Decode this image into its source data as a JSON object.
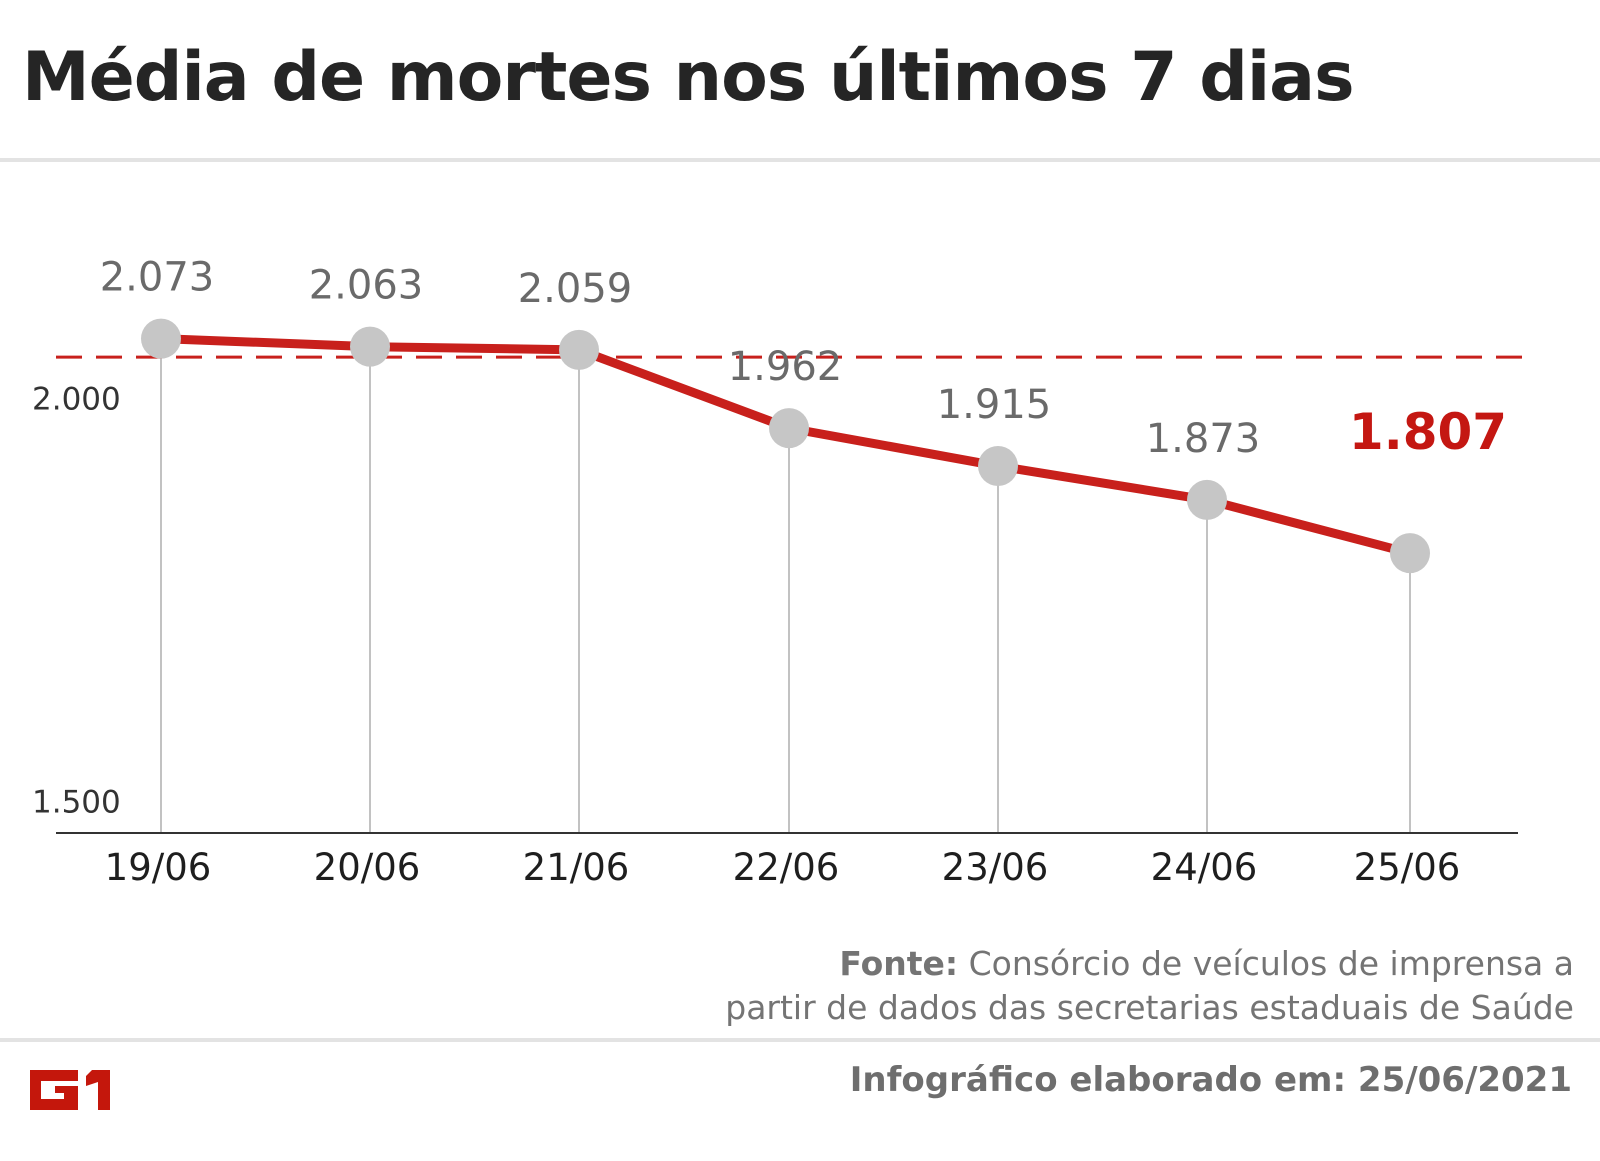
{
  "title": "Média de mortes nos últimos 7 dias",
  "chart_data": {
    "type": "line",
    "title": "Média de mortes nos últimos 7 dias",
    "xlabel": "",
    "ylabel": "",
    "categories": [
      "19/06",
      "20/06",
      "21/06",
      "22/06",
      "23/06",
      "24/06",
      "25/06"
    ],
    "series": [
      {
        "values": [
          2073,
          2063,
          2059,
          1962,
          1915,
          1873,
          1807
        ]
      }
    ],
    "data_labels": [
      "2.073",
      "2.063",
      "2.059",
      "1.962",
      "1.915",
      "1.873",
      "1.807"
    ],
    "highlight_index": 6,
    "y_ticks": [
      {
        "value": 1500,
        "label": "1.500"
      },
      {
        "value": 2000,
        "label": "2.000"
      }
    ],
    "reference_line": {
      "value": 2050,
      "style": "dashed"
    },
    "ylim": [
      1460,
      2225
    ],
    "grid": false,
    "colors": {
      "line": "#c8201c",
      "marker": "#c6c6c6",
      "label": "#6a6a6a",
      "highlight": "#c41712",
      "dashed": "#c8201c"
    }
  },
  "source": {
    "label": "Fonte:",
    "text_line1": "Consórcio de veículos de imprensa a",
    "text_line2": "partir de dados das secretarias estaduais de Saúde"
  },
  "credit": "Infográfico elaborado em: 25/06/2021",
  "logo": {
    "text": "G1",
    "color": "#c4170c"
  }
}
